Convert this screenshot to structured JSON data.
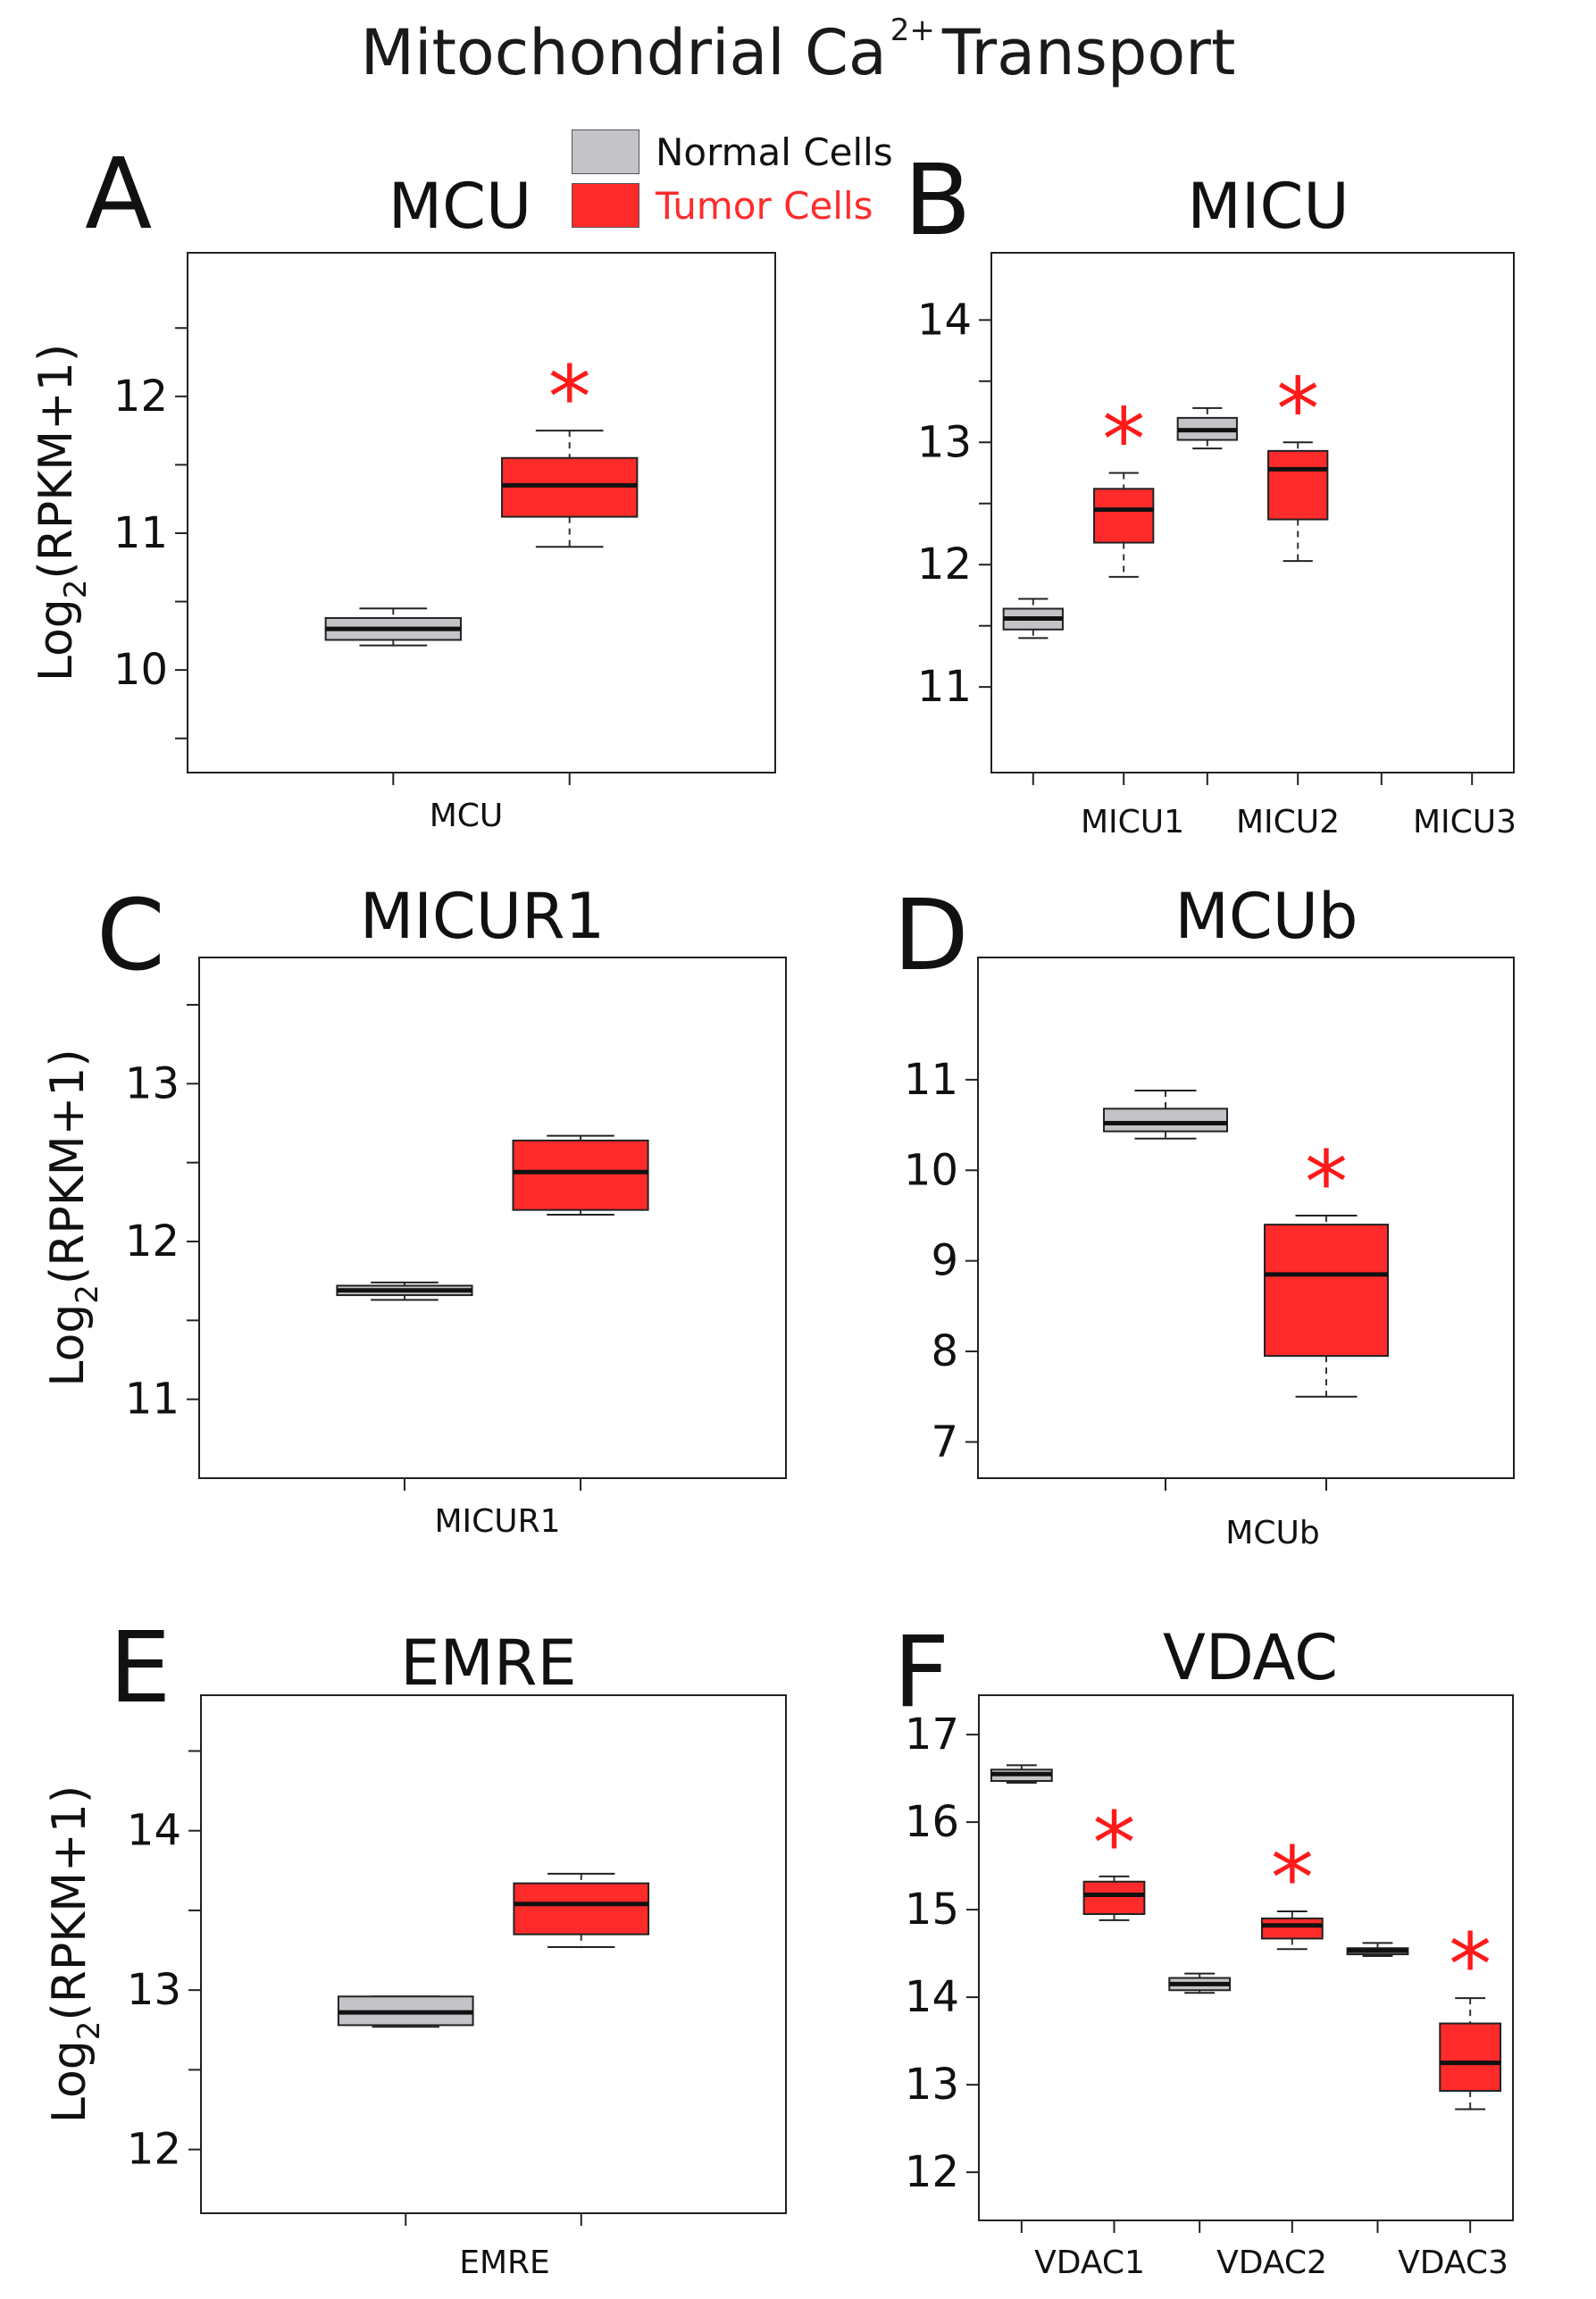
{
  "title": {
    "main": "Mitochondrial Ca",
    "superscript": "2+",
    "suffix": "Transport"
  },
  "legend": [
    {
      "label": "Normal Cells",
      "color": "#c4c4c8"
    },
    {
      "label": "Tumor Cells",
      "color": "#ff2b2b"
    }
  ],
  "y_axis_label": {
    "base": "Log",
    "sub": "2",
    "rest": "(RPKM+1)"
  },
  "significance_marker": "*",
  "colors": {
    "normal": "#c4c4c8",
    "tumor": "#ff2b2b",
    "star": "#ff1a1a"
  },
  "chart_data": [
    {
      "panel": "A",
      "title": "MCU",
      "type": "box",
      "categories": [
        "MCU"
      ],
      "ylim": [
        9.25,
        13.05
      ],
      "yticks": [
        10,
        11,
        12
      ],
      "minor_yticks": [
        9.5,
        10.5,
        11.5,
        12.5
      ],
      "series": [
        {
          "name": "Normal Cells",
          "boxes": [
            {
              "min": 10.18,
              "q1": 10.22,
              "median": 10.3,
              "q3": 10.38,
              "max": 10.45
            }
          ]
        },
        {
          "name": "Tumor Cells",
          "boxes": [
            {
              "min": 10.9,
              "q1": 11.12,
              "median": 11.35,
              "q3": 11.55,
              "max": 11.75,
              "significant": true
            }
          ]
        }
      ]
    },
    {
      "panel": "B",
      "title": "MICU",
      "type": "box",
      "categories": [
        "MICU1",
        "MICU2",
        "MICU3"
      ],
      "ylim": [
        10.3,
        14.55
      ],
      "yticks": [
        11,
        12,
        13,
        14
      ],
      "minor_yticks": [
        11.5,
        12.5,
        13.5
      ],
      "series": [
        {
          "name": "Normal Cells",
          "boxes": [
            {
              "min": 11.4,
              "q1": 11.47,
              "median": 11.56,
              "q3": 11.64,
              "max": 11.72
            },
            {
              "min": 12.95,
              "q1": 13.02,
              "median": 13.1,
              "q3": 13.2,
              "max": 13.28
            },
            null
          ]
        },
        {
          "name": "Tumor Cells",
          "boxes": [
            {
              "min": 11.9,
              "q1": 12.18,
              "median": 12.45,
              "q3": 12.62,
              "max": 12.75,
              "significant": true
            },
            {
              "min": 12.03,
              "q1": 12.37,
              "median": 12.78,
              "q3": 12.93,
              "max": 13.0,
              "significant": true
            },
            null
          ]
        }
      ]
    },
    {
      "panel": "C",
      "title": "MICUR1",
      "type": "box",
      "categories": [
        "MICUR1"
      ],
      "ylim": [
        10.5,
        13.8
      ],
      "yticks": [
        11,
        12,
        13
      ],
      "minor_yticks": [
        11.5,
        12.5,
        13.5
      ],
      "series": [
        {
          "name": "Normal Cells",
          "boxes": [
            {
              "min": 11.63,
              "q1": 11.66,
              "median": 11.69,
              "q3": 11.72,
              "max": 11.74
            }
          ]
        },
        {
          "name": "Tumor Cells",
          "boxes": [
            {
              "min": 12.17,
              "q1": 12.2,
              "median": 12.44,
              "q3": 12.64,
              "max": 12.67
            }
          ]
        }
      ]
    },
    {
      "panel": "D",
      "title": "MCUb",
      "type": "box",
      "categories": [
        "MCUb"
      ],
      "ylim": [
        6.6,
        12.35
      ],
      "yticks": [
        7,
        8,
        9,
        10,
        11
      ],
      "minor_yticks": [],
      "series": [
        {
          "name": "Normal Cells",
          "boxes": [
            {
              "min": 10.35,
              "q1": 10.43,
              "median": 10.52,
              "q3": 10.68,
              "max": 10.88
            }
          ]
        },
        {
          "name": "Tumor Cells",
          "boxes": [
            {
              "min": 7.5,
              "q1": 7.95,
              "median": 8.85,
              "q3": 9.4,
              "max": 9.5,
              "significant": true
            }
          ]
        }
      ]
    },
    {
      "panel": "E",
      "title": "EMRE",
      "type": "box",
      "categories": [
        "EMRE"
      ],
      "ylim": [
        11.6,
        14.85
      ],
      "yticks": [
        12,
        13,
        14
      ],
      "minor_yticks": [
        12.5,
        13.5,
        14.5
      ],
      "series": [
        {
          "name": "Normal Cells",
          "boxes": [
            {
              "min": 12.77,
              "q1": 12.78,
              "median": 12.86,
              "q3": 12.96,
              "max": 12.96
            }
          ]
        },
        {
          "name": "Tumor Cells",
          "boxes": [
            {
              "min": 13.27,
              "q1": 13.35,
              "median": 13.54,
              "q3": 13.67,
              "max": 13.73
            }
          ]
        }
      ]
    },
    {
      "panel": "F",
      "title": "VDAC",
      "type": "box",
      "categories": [
        "VDAC1",
        "VDAC2",
        "VDAC3"
      ],
      "ylim": [
        11.45,
        17.45
      ],
      "yticks": [
        12,
        13,
        14,
        15,
        16,
        17
      ],
      "minor_yticks": [],
      "series": [
        {
          "name": "Normal Cells",
          "boxes": [
            {
              "min": 16.45,
              "q1": 16.47,
              "median": 16.55,
              "q3": 16.6,
              "max": 16.65
            },
            {
              "min": 14.05,
              "q1": 14.08,
              "median": 14.15,
              "q3": 14.22,
              "max": 14.27
            },
            {
              "min": 14.47,
              "q1": 14.49,
              "median": 14.53,
              "q3": 14.56,
              "max": 14.62
            }
          ]
        },
        {
          "name": "Tumor Cells",
          "boxes": [
            {
              "min": 14.88,
              "q1": 14.95,
              "median": 15.17,
              "q3": 15.32,
              "max": 15.38,
              "significant": true
            },
            {
              "min": 14.55,
              "q1": 14.67,
              "median": 14.82,
              "q3": 14.9,
              "max": 14.98,
              "significant": true
            },
            {
              "min": 12.72,
              "q1": 12.93,
              "median": 13.25,
              "q3": 13.7,
              "max": 13.99,
              "significant": true
            }
          ]
        }
      ]
    }
  ]
}
